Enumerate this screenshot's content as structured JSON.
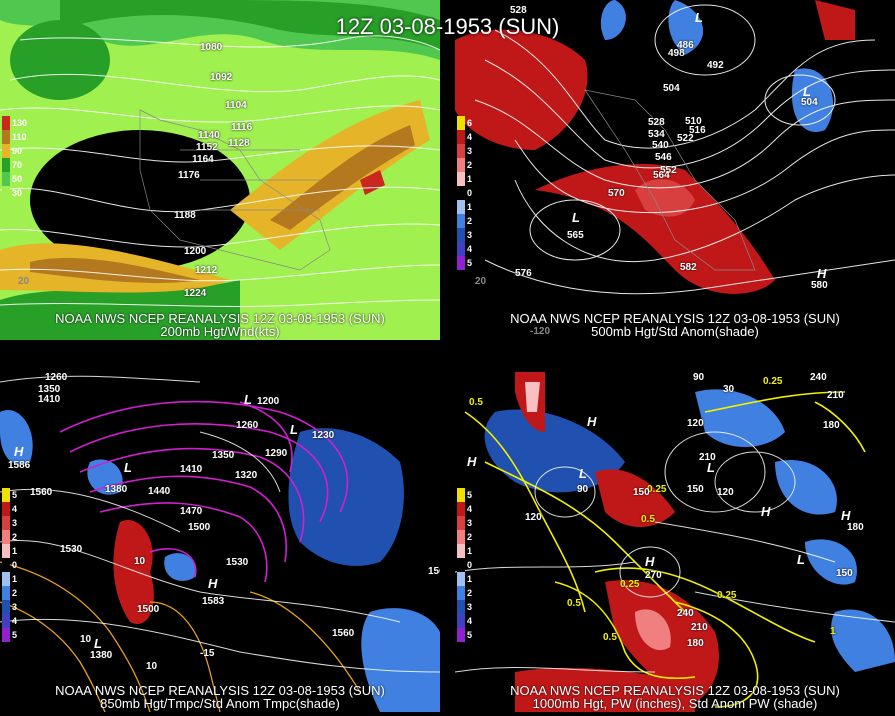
{
  "title": "12Z 03-08-1953 (SUN)",
  "panels": [
    {
      "caption1": "NOAA NWS NCEP REANALYSIS 12Z 03-08-1953 (SUN)",
      "caption2": "200mb Hgt/Wnd(kts)",
      "legend": [
        {
          "label": "130",
          "color": "#c8281e"
        },
        {
          "label": "110",
          "color": "#b4781e"
        },
        {
          "label": "90",
          "color": "#e6b428"
        },
        {
          "label": "70",
          "color": "#28a028"
        },
        {
          "label": "50",
          "color": "#50c850"
        },
        {
          "label": "30",
          "color": "#a0f050"
        }
      ],
      "contour_labels": [
        "1080",
        "1092",
        "1104",
        "1116",
        "1128",
        "1140",
        "1152",
        "1164",
        "1176",
        "1188",
        "1200",
        "1212",
        "1224"
      ],
      "edge_labels": [
        "20"
      ]
    },
    {
      "caption1": "NOAA NWS NCEP REANALYSIS 12Z 03-08-1953 (SUN)",
      "caption2": "500mb Hgt/Std Anom(shade)",
      "legend": [
        {
          "label": "6",
          "color": "#f0e000"
        },
        {
          "label": "4",
          "color": "#c01818"
        },
        {
          "label": "3",
          "color": "#d84040"
        },
        {
          "label": "2",
          "color": "#f08080"
        },
        {
          "label": "1",
          "color": "#f8c0c0"
        },
        {
          "label": "0",
          "color": "#000000"
        },
        {
          "label": "1",
          "color": "#a0c0f0"
        },
        {
          "label": "2",
          "color": "#4080e0"
        },
        {
          "label": "3",
          "color": "#2050b0"
        },
        {
          "label": "4",
          "color": "#4040c0"
        },
        {
          "label": "5",
          "color": "#9020d0"
        }
      ],
      "contour_labels": [
        "528",
        "486",
        "498",
        "492",
        "504",
        "510",
        "516",
        "522",
        "528",
        "534",
        "540",
        "546",
        "552",
        "564",
        "570",
        "576",
        "582",
        "565",
        "504",
        "580"
      ],
      "centers": [
        "L",
        "L",
        "L",
        "H"
      ],
      "edge_labels": [
        "20",
        "-120"
      ]
    },
    {
      "caption1": "NOAA NWS NCEP REANALYSIS 12Z 03-08-1953 (SUN)",
      "caption2": "850mb Hgt/Tmpc/Std Anom Tmpc(shade)",
      "legend": [
        {
          "label": "5",
          "color": "#f0e000"
        },
        {
          "label": "4",
          "color": "#c01818"
        },
        {
          "label": "3",
          "color": "#d84040"
        },
        {
          "label": "2",
          "color": "#f08080"
        },
        {
          "label": "1",
          "color": "#f8c0c0"
        },
        {
          "label": "0",
          "color": "#000000"
        },
        {
          "label": "1",
          "color": "#a0c0f0"
        },
        {
          "label": "2",
          "color": "#4080e0"
        },
        {
          "label": "3",
          "color": "#2050b0"
        },
        {
          "label": "4",
          "color": "#4040c0"
        },
        {
          "label": "5",
          "color": "#9020d0"
        }
      ],
      "contour_labels": [
        "1260",
        "1350",
        "1410",
        "1200",
        "1230",
        "1260",
        "1290",
        "1320",
        "1350",
        "1380",
        "1410",
        "1440",
        "1470",
        "1500",
        "1530",
        "1560",
        "1500",
        "1530",
        "1560",
        "1583",
        "1586",
        "1560",
        "1380",
        "10",
        "10",
        "10",
        "-15"
      ],
      "centers": [
        "L",
        "L",
        "L",
        "H",
        "H",
        "L"
      ]
    },
    {
      "caption1": "NOAA NWS NCEP REANALYSIS 12Z 03-08-1953 (SUN)",
      "caption2": "1000mb Hgt, PW (inches), Std Anom PW (shade)",
      "legend": [
        {
          "label": "5",
          "color": "#f0e000"
        },
        {
          "label": "4",
          "color": "#c01818"
        },
        {
          "label": "3",
          "color": "#d84040"
        },
        {
          "label": "2",
          "color": "#f08080"
        },
        {
          "label": "1",
          "color": "#f8c0c0"
        },
        {
          "label": "0",
          "color": "#000000"
        },
        {
          "label": "1",
          "color": "#a0c0f0"
        },
        {
          "label": "2",
          "color": "#4080e0"
        },
        {
          "label": "3",
          "color": "#2050b0"
        },
        {
          "label": "4",
          "color": "#4040c0"
        },
        {
          "label": "5",
          "color": "#9020d0"
        }
      ],
      "contour_labels": [
        "0.5",
        "90",
        "30",
        "240",
        "210",
        "0.25",
        "180",
        "120",
        "210",
        "150",
        "90",
        "120",
        "0.25",
        "0.5",
        "150",
        "120",
        "150",
        "180",
        "240",
        "210",
        "180",
        "270",
        "0.25",
        "0.5",
        "0.5",
        "0.25",
        "1"
      ],
      "centers": [
        "H",
        "H",
        "L",
        "L",
        "H",
        "H",
        "L",
        "H"
      ]
    }
  ]
}
